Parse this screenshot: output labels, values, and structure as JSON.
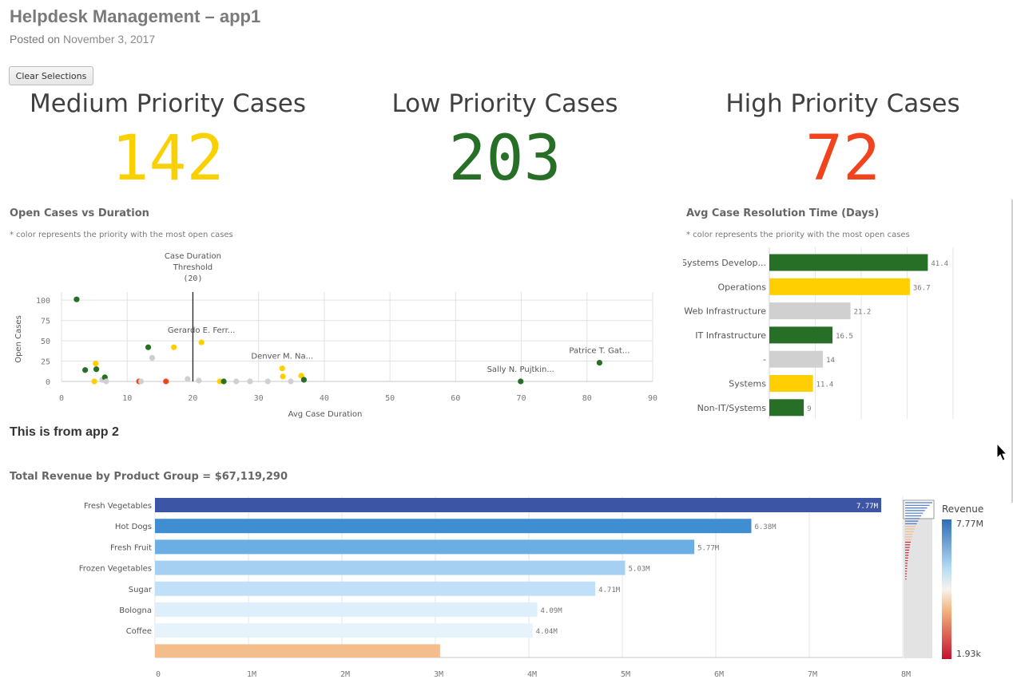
{
  "page": {
    "title": "Helpdesk Management – app1",
    "posted_prefix": "Posted on",
    "posted_date": "November 3, 2017",
    "clear_button": "Clear Selections",
    "app2_heading": "This is from app 2"
  },
  "kpis": [
    {
      "label": "Medium Priority Cases",
      "value": "142",
      "color": "#f9d000"
    },
    {
      "label": "Low Priority Cases",
      "value": "203",
      "color": "#276e27"
    },
    {
      "label": "High Priority Cases",
      "value": "72",
      "color": "#f0441f"
    }
  ],
  "colors": {
    "low": "#276e27",
    "medium": "#ffcf02",
    "high": "#f0441f",
    "none": "#d0d0d0"
  },
  "chart_data": [
    {
      "type": "scatter",
      "title": "Open Cases vs Duration",
      "subtitle": "* color represents the priority with the most open cases",
      "xlabel": "Avg Case Duration",
      "ylabel": "Open Cases",
      "xlim": [
        0,
        90
      ],
      "ylim": [
        0,
        110
      ],
      "xticks": [
        0,
        10,
        20,
        30,
        40,
        50,
        60,
        70,
        80,
        90
      ],
      "yticks": [
        0,
        25,
        50,
        75,
        100
      ],
      "reference_line": {
        "x": 20,
        "label": [
          "Case Duration",
          "Threshold",
          "(20)"
        ]
      },
      "points": [
        {
          "x": 2.3,
          "y": 101,
          "p": "low"
        },
        {
          "x": 3.6,
          "y": 14,
          "p": "low"
        },
        {
          "x": 5.2,
          "y": 22,
          "p": "medium"
        },
        {
          "x": 5.3,
          "y": 15,
          "p": "low"
        },
        {
          "x": 5.0,
          "y": 0,
          "p": "medium"
        },
        {
          "x": 6.2,
          "y": 2,
          "p": "none"
        },
        {
          "x": 6.6,
          "y": 5,
          "p": "low"
        },
        {
          "x": 6.8,
          "y": 0,
          "p": "none"
        },
        {
          "x": 11.8,
          "y": 0,
          "p": "high"
        },
        {
          "x": 12.1,
          "y": 0,
          "p": "none"
        },
        {
          "x": 13.2,
          "y": 42,
          "p": "low"
        },
        {
          "x": 13.8,
          "y": 29,
          "p": "none"
        },
        {
          "x": 15.9,
          "y": 0,
          "p": "high"
        },
        {
          "x": 17.1,
          "y": 42,
          "p": "medium"
        },
        {
          "x": 19.2,
          "y": 3,
          "p": "none"
        },
        {
          "x": 21.3,
          "y": 48,
          "p": "medium",
          "label": "Gerardo E. Ferr..."
        },
        {
          "x": 20.9,
          "y": 1,
          "p": "none"
        },
        {
          "x": 24.1,
          "y": 0,
          "p": "medium"
        },
        {
          "x": 24.7,
          "y": 0,
          "p": "low"
        },
        {
          "x": 26.6,
          "y": 0,
          "p": "none"
        },
        {
          "x": 28.7,
          "y": 0,
          "p": "none"
        },
        {
          "x": 31.4,
          "y": 0,
          "p": "none"
        },
        {
          "x": 33.6,
          "y": 16,
          "p": "medium",
          "label": "Denver M. Na..."
        },
        {
          "x": 33.7,
          "y": 6,
          "p": "medium"
        },
        {
          "x": 34.9,
          "y": 0,
          "p": "none"
        },
        {
          "x": 36.5,
          "y": 7,
          "p": "medium"
        },
        {
          "x": 36.9,
          "y": 2,
          "p": "low"
        },
        {
          "x": 69.9,
          "y": 0,
          "p": "low",
          "label": "Sally N. Pujtkin..."
        },
        {
          "x": 81.9,
          "y": 23,
          "p": "low",
          "label": "Patrice T. Gat..."
        }
      ]
    },
    {
      "type": "bar",
      "title": "Avg Case Resolution Time (Days)",
      "subtitle": "* color represents the priority with the most open cases",
      "categories": [
        "Systems Develop...",
        "Operations",
        "Web Infrastructure",
        "IT Infrastructure",
        "-",
        "Systems",
        "Non-IT/Systems"
      ],
      "values": [
        41.4,
        36.7,
        21.2,
        16.5,
        14,
        11.4,
        9
      ],
      "value_labels": [
        "41.4",
        "36.7",
        "21.2",
        "16.5",
        "14",
        "11.4",
        "9"
      ],
      "priority": [
        "low",
        "medium",
        "none",
        "low",
        "none",
        "medium",
        "low"
      ],
      "xlim": [
        0,
        48
      ]
    },
    {
      "type": "bar",
      "title": "Total Revenue by Product Group = $67,119,290",
      "categories": [
        "Fresh Vegetables",
        "Hot Dogs",
        "Fresh Fruit",
        "Frozen Vegetables",
        "Sugar",
        "Bologna",
        "Coffee",
        ""
      ],
      "values": [
        7770000,
        6380000,
        5770000,
        5030000,
        4710000,
        4090000,
        4040000,
        3050000
      ],
      "value_labels": [
        "7.77M",
        "6.38M",
        "5.77M",
        "5.03M",
        "4.71M",
        "4.09M",
        "4.04M",
        ""
      ],
      "bar_colors": [
        "#3c55a5",
        "#3f8ed2",
        "#6aaee3",
        "#a5d0f1",
        "#bfe0f8",
        "#deeffb",
        "#e6f3fc",
        "#f3bd8c"
      ],
      "xlim": [
        0,
        8000000
      ],
      "xticks": [
        "0",
        "1M",
        "2M",
        "3M",
        "4M",
        "5M",
        "6M",
        "7M",
        "8M"
      ],
      "legend": {
        "title": "Revenue",
        "max": "7.77M",
        "min": "1.93k"
      }
    }
  ]
}
